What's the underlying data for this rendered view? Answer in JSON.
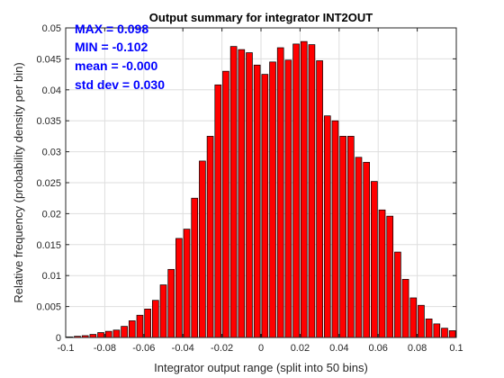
{
  "chart_data": {
    "type": "bar",
    "title": "Output summary for integrator INT2OUT",
    "xlabel": "Integrator output range (split into 50 bins)",
    "ylabel": "Relative frequency (probability density per bin)",
    "xlim": [
      -0.1,
      0.1
    ],
    "ylim": [
      0,
      0.05
    ],
    "x_ticks": [
      "-0.1",
      "-0.08",
      "-0.06",
      "-0.04",
      "-0.02",
      "0",
      "0.02",
      "0.04",
      "0.06",
      "0.08",
      "0.1"
    ],
    "y_ticks": [
      "0",
      "0.005",
      "0.01",
      "0.015",
      "0.02",
      "0.025",
      "0.03",
      "0.035",
      "0.04",
      "0.045",
      "0.05"
    ],
    "grid": true,
    "bar_color": "#ff0000",
    "bar_edge_color": "#000000",
    "bin_centers": [
      -0.098,
      -0.094,
      -0.09,
      -0.086,
      -0.082,
      -0.078,
      -0.074,
      -0.07,
      -0.066,
      -0.062,
      -0.058,
      -0.054,
      -0.05,
      -0.046,
      -0.042,
      -0.038,
      -0.034,
      -0.03,
      -0.026,
      -0.022,
      -0.018,
      -0.014,
      -0.01,
      -0.006,
      -0.002,
      0.002,
      0.006,
      0.01,
      0.014,
      0.018,
      0.022,
      0.026,
      0.03,
      0.034,
      0.038,
      0.042,
      0.046,
      0.05,
      0.054,
      0.058,
      0.062,
      0.066,
      0.07,
      0.074,
      0.078,
      0.082,
      0.086,
      0.09,
      0.094,
      0.098
    ],
    "values": [
      0.0001,
      0.0002,
      0.0003,
      0.0005,
      0.0008,
      0.001,
      0.0012,
      0.0018,
      0.0027,
      0.0036,
      0.0046,
      0.006,
      0.0085,
      0.011,
      0.016,
      0.0175,
      0.0225,
      0.0285,
      0.0325,
      0.0408,
      0.043,
      0.047,
      0.0465,
      0.046,
      0.044,
      0.0425,
      0.0445,
      0.0468,
      0.0448,
      0.0474,
      0.0478,
      0.0473,
      0.0447,
      0.0358,
      0.035,
      0.0325,
      0.0325,
      0.0291,
      0.0283,
      0.0252,
      0.0206,
      0.0196,
      0.0138,
      0.0094,
      0.0064,
      0.0052,
      0.003,
      0.0022,
      0.0015,
      0.0011
    ],
    "annotations": [
      "MAX = 0.098",
      "MIN = -0.102",
      "mean = -0.000",
      "std dev = 0.030"
    ],
    "annotation_color": "#0000ff"
  }
}
